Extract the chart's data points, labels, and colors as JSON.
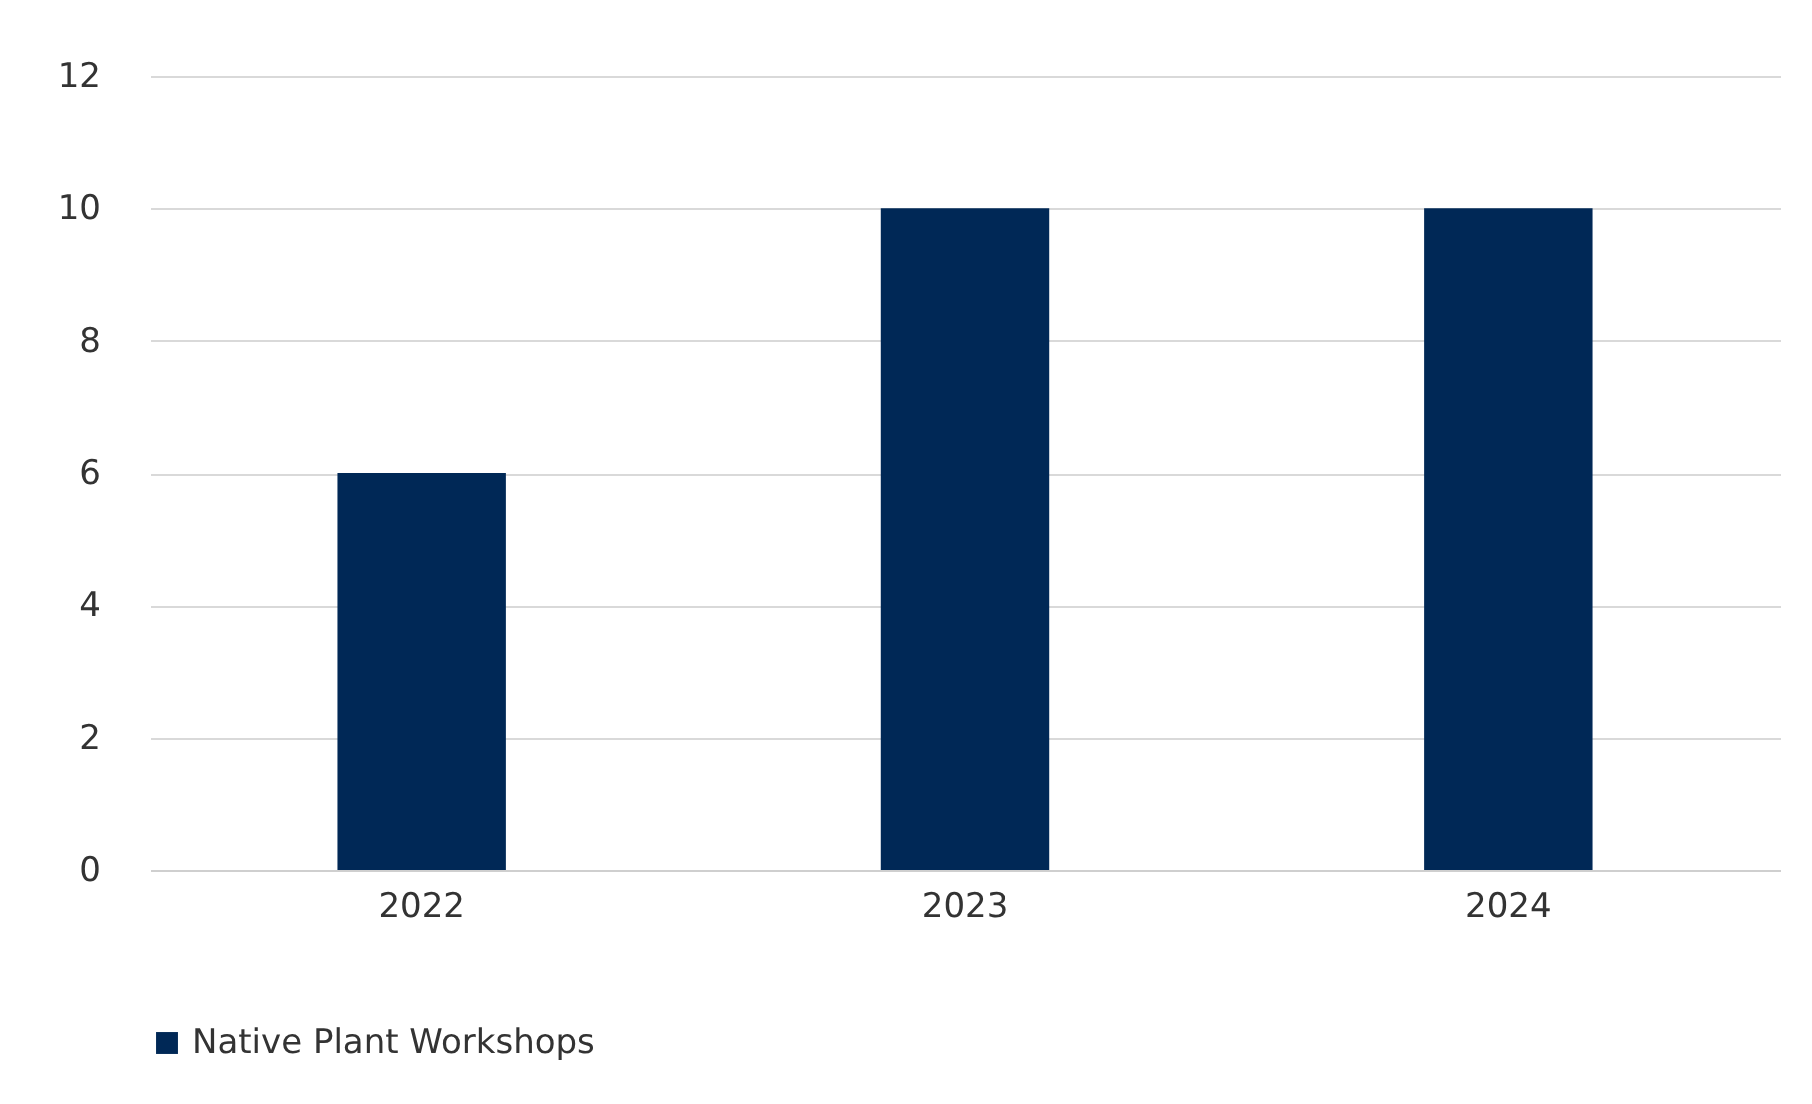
{
  "chart_data": {
    "type": "bar",
    "categories": [
      "2022",
      "2023",
      "2024"
    ],
    "series": [
      {
        "name": "Native Plant Workshops",
        "color": "#002856",
        "values": [
          6,
          10,
          10
        ]
      }
    ],
    "ylim": [
      0,
      12
    ],
    "yticks": [
      0,
      2,
      4,
      6,
      8,
      10,
      12
    ],
    "grid": "y",
    "legend": "bottom"
  }
}
